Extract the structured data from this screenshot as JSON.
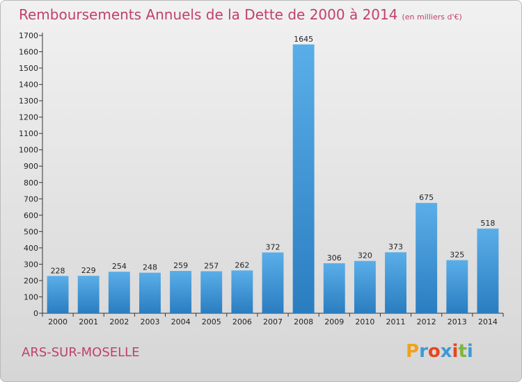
{
  "header": {
    "title": "Remboursements Annuels de la Dette de 2000 à 2014",
    "unit": "(en milliers d'€)"
  },
  "footer": {
    "commune": "ARS-SUR-MOSELLE",
    "logo_letters": [
      "P",
      "r",
      "o",
      "x",
      "i",
      "t",
      "i"
    ],
    "logo_colors": [
      "#f0a21c",
      "#3d9ad6",
      "#e8451d",
      "#3d9ad6",
      "#e8451d",
      "#7cb83a",
      "#3d9ad6"
    ]
  },
  "colors": {
    "bar_top": "#5aaee8",
    "bar_bottom": "#2a7dc0",
    "title": "#c0416a",
    "axis": "#333333"
  },
  "chart_data": {
    "type": "bar",
    "title": "Remboursements Annuels de la Dette de 2000 à 2014",
    "xlabel": "",
    "ylabel": "",
    "ylim": [
      0,
      1700
    ],
    "ytick_step": 100,
    "grid": false,
    "categories": [
      "2000",
      "2001",
      "2002",
      "2003",
      "2004",
      "2005",
      "2006",
      "2007",
      "2008",
      "2009",
      "2010",
      "2011",
      "2012",
      "2013",
      "2014"
    ],
    "values": [
      228,
      229,
      254,
      248,
      259,
      257,
      262,
      372,
      1645,
      306,
      320,
      373,
      675,
      325,
      518
    ]
  }
}
